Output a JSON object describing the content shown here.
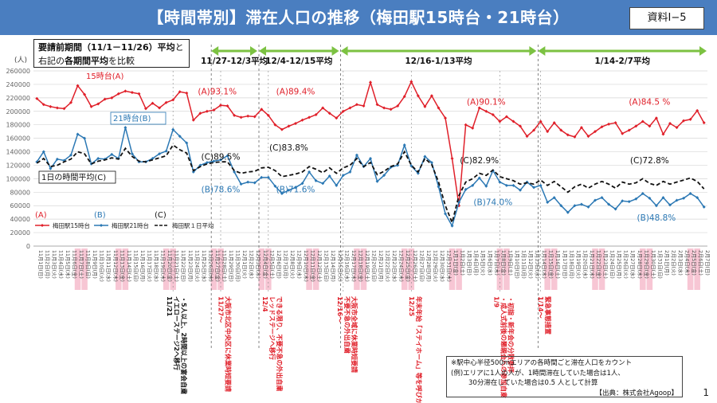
{
  "header": {
    "title": "【時間帯別】滞在人口の推移（梅田駅15時台・21時台）",
    "doc_id": "資料Ⅰ−5",
    "bg_color": "#4a7ec0"
  },
  "note": {
    "line1_bold": "要請前期間（11/1－11/26）平均",
    "line1_suffix": "と",
    "line2_prefix": "右記の",
    "line2_bold": "各期間平均",
    "line2_suffix": "を比較"
  },
  "source": {
    "line1": "※駅中心半径500mエリアの各時間ごと滞在人口をカウント",
    "line2": "(例)エリアに1人の人が、1時間滞在していた場合は1人、",
    "line3": "30分滞在していた場合は0.5 人として計算",
    "line4": "【出典：株式会社Agoop】"
  },
  "page_number": "1",
  "chart_data": {
    "type": "line",
    "ylabel": "(人)",
    "ylim": [
      0,
      260000
    ],
    "yticks": [
      "0",
      "20000",
      "40000",
      "60000",
      "80000",
      "100000",
      "120000",
      "140000",
      "160000",
      "180000",
      "200000",
      "220000",
      "240000",
      "260000"
    ],
    "grid": true,
    "x_start": "2020-11-01",
    "x_labels": [
      "11月1日(日)",
      "11月2日(月)",
      "11月3日(火)",
      "11月4日(水)",
      "11月5日(木)",
      "11月6日(金)",
      "11月7日(土)",
      "11月8日(日)",
      "11月9日(月)",
      "11月10日(火)",
      "11月11日(水)",
      "11月12日(木)",
      "11月13日(金)",
      "11月14日(土)",
      "11月15日(日)",
      "11月16日(月)",
      "11月17日(火)",
      "11月18日(水)",
      "11月19日(木)",
      "11月20日(金)",
      "11月21日(土)",
      "11月22日(日)",
      "11月23日(月)",
      "11月24日(火)",
      "11月25日(水)",
      "11月26日(木)",
      "11月27日(金)",
      "11月28日(土)",
      "11月29日(日)",
      "11月30日(月)",
      "12月1日(火)",
      "12月2日(水)",
      "12月3日(木)",
      "12月4日(金)",
      "12月5日(土)",
      "12月6日(日)",
      "12月7日(月)",
      "12月8日(火)",
      "12月9日(水)",
      "12月10日(木)",
      "12月11日(金)",
      "12月12日(土)",
      "12月13日(日)",
      "12月14日(月)",
      "12月15日(火)",
      "12月16日(水)",
      "12月17日(木)",
      "12月18日(金)",
      "12月19日(土)",
      "12月20日(日)",
      "12月21日(月)",
      "12月22日(火)",
      "12月23日(水)",
      "12月24日(木)",
      "12月25日(金)",
      "12月26日(土)",
      "12月27日(日)",
      "12月28日(月)",
      "12月29日(火)",
      "12月30日(水)",
      "12月31日(木)",
      "1月1日(金)",
      "1月2日(土)",
      "1月3日(日)",
      "1月4日(月)",
      "1月5日(火)",
      "1月6日(水)",
      "1月7日(木)",
      "1月8日(金)",
      "1月9日(土)",
      "1月10日(日)",
      "1月11日(月)",
      "1月12日(火)",
      "1月13日(水)",
      "1月14日(木)",
      "1月15日(金)",
      "1月16日(土)",
      "1月17日(日)",
      "1月18日(月)",
      "1月19日(火)",
      "1月20日(水)",
      "1月21日(木)",
      "1月22日(金)",
      "1月23日(土)",
      "1月24日(日)",
      "1月25日(月)",
      "1月26日(火)",
      "1月27日(水)",
      "1月28日(木)",
      "1月29日(金)",
      "1月30日(土)",
      "1月31日(日)",
      "2月1日(月)",
      "2月2日(火)",
      "2月3日(水)",
      "2月4日(木)",
      "2月5日(金)",
      "2月6日(土)",
      "2月7日(日)"
    ],
    "highlight_indices": [
      6,
      7,
      12,
      13,
      19,
      20,
      26,
      27,
      33,
      34,
      40,
      41,
      47,
      48,
      54,
      55,
      61,
      62,
      68,
      69,
      75,
      76,
      82,
      83,
      89,
      90,
      96,
      97
    ],
    "highlight_color": "#f7c6d4",
    "series": [
      {
        "name": "梅田駅15時台",
        "color": "#e0202a",
        "style": "solid",
        "marker": "diamond",
        "values": [
          219000,
          210000,
          207000,
          205000,
          204000,
          213000,
          238000,
          225000,
          207000,
          211000,
          218000,
          220000,
          226000,
          230000,
          228000,
          226000,
          204000,
          212000,
          205000,
          213000,
          217000,
          229000,
          227000,
          187000,
          197000,
          200000,
          202000,
          209000,
          208000,
          194000,
          191000,
          193000,
          192000,
          203000,
          194000,
          180000,
          173000,
          178000,
          182000,
          187000,
          191000,
          195000,
          205000,
          197000,
          190000,
          200000,
          205000,
          210000,
          208000,
          243000,
          210000,
          205000,
          203000,
          208000,
          222000,
          244000,
          223000,
          207000,
          223000,
          205000,
          190000,
          130000,
          60000,
          180000,
          175000,
          205000,
          200000,
          195000,
          185000,
          192000,
          185000,
          178000,
          163000,
          172000,
          185000,
          170000,
          183000,
          172000,
          165000,
          162000,
          176000,
          163000,
          170000,
          177000,
          181000,
          183000,
          167000,
          172000,
          178000,
          185000,
          178000,
          190000,
          166000,
          182000,
          176000,
          186000,
          188000,
          201000,
          183000
        ]
      },
      {
        "name": "梅田駅21時台",
        "color": "#2b78b4",
        "style": "solid",
        "marker": "diamond",
        "values": [
          125000,
          140000,
          115000,
          129000,
          127000,
          135000,
          166000,
          160000,
          122000,
          130000,
          129000,
          136000,
          130000,
          176000,
          137000,
          125000,
          125000,
          130000,
          137000,
          141000,
          173000,
          163000,
          153000,
          110000,
          120000,
          124000,
          126000,
          128000,
          134000,
          110000,
          92000,
          95000,
          94000,
          102000,
          102000,
          89000,
          78000,
          83000,
          87000,
          93000,
          110000,
          97000,
          93000,
          104000,
          90000,
          105000,
          110000,
          135000,
          118000,
          130000,
          96000,
          105000,
          117000,
          120000,
          150000,
          119000,
          108000,
          133000,
          124000,
          88000,
          48000,
          30000,
          65000,
          84000,
          90000,
          101000,
          89000,
          112000,
          95000,
          90000,
          90000,
          83000,
          95000,
          87000,
          90000,
          65000,
          72000,
          60000,
          50000,
          60000,
          62000,
          58000,
          68000,
          72000,
          62000,
          55000,
          67000,
          66000,
          70000,
          78000,
          71000,
          60000,
          72000,
          61000,
          68000,
          71000,
          78000,
          72000,
          58000
        ]
      },
      {
        "name": "梅田駅１日平均",
        "color": "#111111",
        "style": "dashed",
        "marker": "none",
        "values": [
          123000,
          130000,
          118000,
          120000,
          125000,
          129000,
          140000,
          137000,
          122000,
          126000,
          128000,
          131000,
          129000,
          145000,
          133000,
          126000,
          125000,
          128000,
          131000,
          134000,
          150000,
          143000,
          138000,
          112000,
          118000,
          122000,
          124000,
          125000,
          125000,
          112000,
          108000,
          110000,
          111000,
          116000,
          117000,
          112000,
          103000,
          105000,
          107000,
          110000,
          118000,
          114000,
          109000,
          116000,
          108000,
          116000,
          120000,
          130000,
          118000,
          124000,
          106000,
          111000,
          118000,
          122000,
          140000,
          120000,
          110000,
          130000,
          121000,
          95000,
          60000,
          35000,
          75000,
          95000,
          100000,
          108000,
          105000,
          113000,
          103000,
          100000,
          97000,
          92000,
          94000,
          92000,
          98000,
          90000,
          96000,
          88000,
          80000,
          88000,
          92000,
          86000,
          92000,
          96000,
          92000,
          86000,
          95000,
          92000,
          94000,
          100000,
          93000,
          90000,
          96000,
          92000,
          95000,
          98000,
          101000,
          96000,
          85000
        ]
      }
    ],
    "legend": [
      "梅田駅15時台",
      "梅田駅21時台",
      "梅田駅１日平均"
    ],
    "periods": [
      {
        "label": "11/27-12/3平均",
        "start_index": 26,
        "end_index": 32
      },
      {
        "label": "12/4-12/15平均",
        "start_index": 33,
        "end_index": 44
      },
      {
        "label": "12/16-1/13平均",
        "start_index": 45,
        "end_index": 73
      },
      {
        "label": "1/14-2/7平均",
        "start_index": 74,
        "end_index": 98
      }
    ],
    "period_color": "#7cc242",
    "series_tags": [
      {
        "text": "15時台(A)",
        "color": "#e0202a"
      },
      {
        "text": "21時台(B)",
        "color": "#2b78b4"
      },
      {
        "text": "1日の時間平均(C)",
        "color": "#111111"
      }
    ],
    "annotations": [
      {
        "text": "(A)93.1%",
        "color": "#e0202a",
        "x_index": 26.5,
        "y_value": 225000
      },
      {
        "text": "(A)89.4%",
        "color": "#e0202a",
        "x_index": 38,
        "y_value": 225000
      },
      {
        "text": "(A)90.1%",
        "color": "#e0202a",
        "x_index": 66,
        "y_value": 210000
      },
      {
        "text": "(A)84.5 %",
        "color": "#e0202a",
        "x_index": 90,
        "y_value": 210000
      },
      {
        "text": "(C)89.5%",
        "color": "#111111",
        "x_index": 27,
        "y_value": 128000
      },
      {
        "text": "(C)83.8%",
        "color": "#111111",
        "x_index": 37,
        "y_value": 142000
      },
      {
        "text": "(C)82.9%",
        "color": "#111111",
        "x_index": 65,
        "y_value": 123000
      },
      {
        "text": "(C)72.8%",
        "color": "#111111",
        "x_index": 90,
        "y_value": 123000
      },
      {
        "text": "(B)78.6%",
        "color": "#2b78b4",
        "x_index": 27,
        "y_value": 80000
      },
      {
        "text": "(B)71.6%",
        "color": "#2b78b4",
        "x_index": 38,
        "y_value": 80000
      },
      {
        "text": "(B)74.0%",
        "color": "#2b78b4",
        "x_index": 67,
        "y_value": 61000
      },
      {
        "text": "(B)48.8%",
        "color": "#2b78b4",
        "x_index": 91,
        "y_value": 38000
      }
    ],
    "legend_letters": [
      {
        "text": "(A)",
        "color": "#e0202a"
      },
      {
        "text": "(B)",
        "color": "#2b78b4"
      },
      {
        "text": "(C)",
        "color": "#111111"
      }
    ],
    "event_notes": [
      {
        "x_index": 20,
        "color": "#111111",
        "lines": [
          "11/21",
          "イエローステージ2へ移行",
          "・5人以上、2時間以上の宴会自粛"
        ]
      },
      {
        "x_index": 27,
        "color": "#e0202a",
        "lines": [
          "11/27～",
          "大阪市北区中央区に休業時短要請"
        ]
      },
      {
        "x_index": 34,
        "color": "#e0202a",
        "lines": [
          "12/4",
          "レッドステージへ移行",
          "できる限り、不要不急の外出自粛"
        ]
      },
      {
        "x_index": 45,
        "color": "#e0202a",
        "lines": [
          "12/16～",
          "不要不急の外出自粛",
          "大阪市全域に休業時短要請"
        ]
      },
      {
        "x_index": 55,
        "color": "#e0202a",
        "lines": [
          "12/25",
          "年末年始「ステイホーム」等を呼びかけ"
        ]
      },
      {
        "x_index": 68,
        "color": "#e0202a",
        "lines": [
          "1/9",
          "・成人式前後の懇親会への参加自粛",
          "・初詣・新年会の分散参拝"
        ]
      },
      {
        "x_index": 74,
        "color": "#e0202a",
        "lines": [
          "1/14～",
          "緊急事態措置"
        ]
      }
    ]
  }
}
